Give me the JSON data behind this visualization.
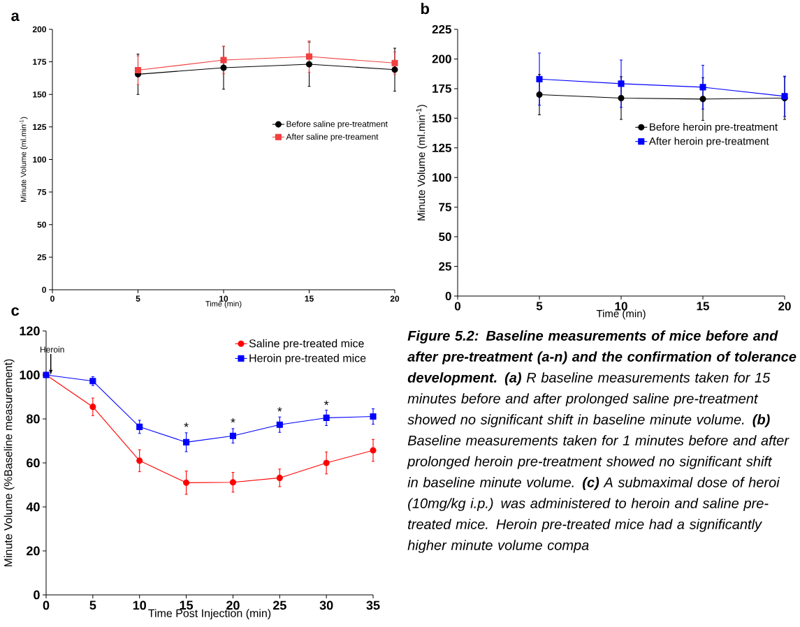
{
  "chart_data": [
    {
      "type": "line",
      "title": "a",
      "xlabel": "Time (min)",
      "ylabel": "Minute Volume (ml.min$^{-1}$)",
      "x": [
        5,
        10,
        15,
        20
      ],
      "xlim": [
        0,
        20
      ],
      "ylim": [
        0,
        200
      ],
      "xticks": [
        0,
        5,
        10,
        15,
        20
      ],
      "yticks": [
        0,
        25,
        50,
        75,
        100,
        125,
        150,
        175,
        200
      ],
      "legend": "right",
      "grid": false,
      "series": [
        {
          "name": "Before saline pre-treatment",
          "color": "#000000",
          "marker": "circle",
          "values": [
            165.5,
            170.5,
            173.2,
            169
          ],
          "errors": [
            15.5,
            16.5,
            17,
            16.5
          ]
        },
        {
          "name": "After saline pre-treament",
          "color": "#f04040",
          "marker": "square",
          "values": [
            168.6,
            176.4,
            179.1,
            174.1
          ],
          "errors": [
            11,
            10.5,
            12,
            8.5
          ]
        }
      ]
    },
    {
      "type": "line",
      "title": "b",
      "xlabel": "Time (min)",
      "ylabel": "Minute Volume (ml.min$^{-1}$)",
      "x": [
        5,
        10,
        15,
        20
      ],
      "xlim": [
        0,
        20
      ],
      "ylim": [
        0,
        225
      ],
      "xticks": [
        0,
        5,
        10,
        15,
        20
      ],
      "yticks": [
        0,
        25,
        50,
        75,
        100,
        125,
        150,
        175,
        200,
        225
      ],
      "legend": "right",
      "grid": false,
      "series": [
        {
          "name": "Before heroin pre-treatment",
          "color": "#000000",
          "marker": "circle",
          "values": [
            169.9,
            167,
            166.2,
            167
          ],
          "errors": [
            17,
            18,
            18,
            18
          ]
        },
        {
          "name": "After heroin pre-treatment",
          "color": "#0000ff",
          "marker": "square",
          "values": [
            183,
            179.1,
            176.2,
            168.5
          ],
          "errors": [
            22,
            20,
            18.5,
            17
          ]
        }
      ]
    },
    {
      "type": "line",
      "title": "c",
      "xlabel": "Time Post Injection (min)",
      "ylabel": "Minute Volume  (%Baseline measurement)",
      "x": [
        0,
        5,
        10,
        15,
        20,
        25,
        30,
        35
      ],
      "xlim": [
        0,
        35
      ],
      "ylim": [
        0,
        120
      ],
      "xticks": [
        0,
        5,
        10,
        15,
        20,
        25,
        30,
        35
      ],
      "yticks": [
        0,
        20,
        40,
        60,
        80,
        100,
        120
      ],
      "legend": "top right",
      "grid": false,
      "series": [
        {
          "name": "Saline pre-treated mice",
          "color": "#ff0000",
          "marker": "circle",
          "values": [
            100,
            85.5,
            61,
            51,
            51.2,
            53.2,
            60,
            65.7
          ],
          "errors": [
            null,
            4,
            5,
            5.3,
            4.5,
            4,
            5,
            5
          ]
        },
        {
          "name": "Heroin pre-treated mice",
          "color": "#0000ff",
          "marker": "square",
          "values": [
            100,
            97.2,
            76.4,
            69.4,
            72.3,
            77.4,
            80.5,
            81.1
          ],
          "errors": [
            null,
            2,
            3,
            4.3,
            3.3,
            3.5,
            3.5,
            3.5
          ]
        }
      ],
      "annotations": [
        {
          "text": "Heroin",
          "x": 0.5,
          "y": 100
        },
        {
          "text": "*",
          "x": 15,
          "y": 74
        },
        {
          "text": "*",
          "x": 20,
          "y": 76
        },
        {
          "text": "*",
          "x": 25,
          "y": 81
        },
        {
          "text": "*",
          "x": 30,
          "y": 84
        }
      ]
    },
    {
      "type": "other",
      "title": "**Figure 5.2: Baseline measurements of mice before and after pre-treatment (a-n) and the confirmation of tolerance development. (a)** R baseline measurements taken for 15 minutes before and after prolonged saline pre-treatment showed no significant shift in baseline minute volume. **(b)** Baseline measurements taken for 1 minutes before and after prolonged heroin pre-treatment showed no significant shift in baseline minute volume. **(c)** A submaximal dose of heroi (10mg/kg i.p.) was administered to heroin and saline pre-treated mice. Heroin pre-treated mice had a significantly higher minute volume compa"
    }
  ]
}
